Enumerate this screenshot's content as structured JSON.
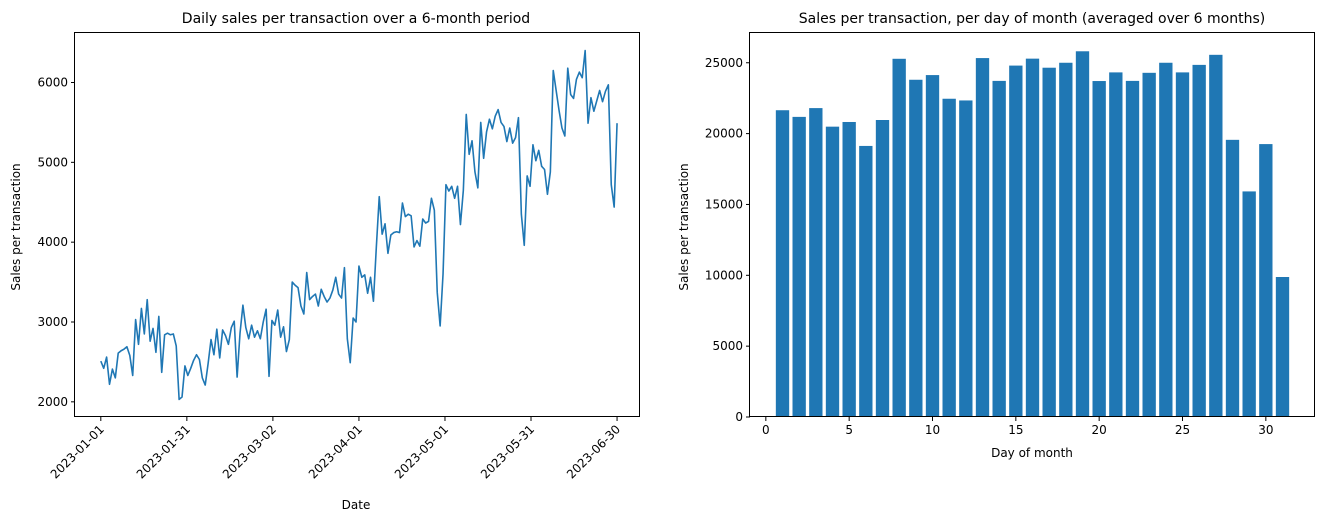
{
  "chart_data": [
    {
      "type": "line",
      "title": "Daily sales per transaction over a 6-month period",
      "xlabel": "Date",
      "ylabel": "Sales per transaction",
      "color": "#1f77b4",
      "xtick_labels": [
        "2023-01-01",
        "2023-01-31",
        "2023-03-02",
        "2023-04-01",
        "2023-05-01",
        "2023-05-31",
        "2023-06-30"
      ],
      "xlim": [
        "2022-12-23",
        "2023-07-08"
      ],
      "ylim": [
        1810,
        6620
      ],
      "yticks": [
        2000,
        3000,
        4000,
        5000,
        6000
      ],
      "grid": false,
      "x_start": "2023-01-01",
      "x_end": "2023-06-30",
      "y": [
        2510,
        2420,
        2560,
        2220,
        2410,
        2300,
        2610,
        2640,
        2660,
        2690,
        2580,
        2330,
        3030,
        2720,
        3170,
        2850,
        3280,
        2760,
        2920,
        2620,
        3070,
        2370,
        2840,
        2860,
        2840,
        2850,
        2700,
        2030,
        2060,
        2450,
        2330,
        2420,
        2520,
        2590,
        2530,
        2300,
        2210,
        2480,
        2780,
        2590,
        2910,
        2550,
        2900,
        2830,
        2720,
        2930,
        3010,
        2310,
        2860,
        3210,
        2930,
        2790,
        2960,
        2810,
        2890,
        2790,
        3000,
        3160,
        2320,
        3020,
        2960,
        3150,
        2810,
        2940,
        2630,
        2780,
        3500,
        3460,
        3430,
        3200,
        3100,
        3620,
        3280,
        3320,
        3350,
        3200,
        3410,
        3320,
        3250,
        3300,
        3400,
        3560,
        3350,
        3300,
        3680,
        2790,
        2490,
        3050,
        3000,
        3700,
        3560,
        3590,
        3360,
        3560,
        3260,
        3940,
        4570,
        4100,
        4230,
        3860,
        4090,
        4120,
        4130,
        4120,
        4490,
        4320,
        4350,
        4330,
        3940,
        4020,
        3950,
        4290,
        4240,
        4260,
        4550,
        4400,
        3370,
        2950,
        3600,
        4720,
        4640,
        4700,
        4550,
        4700,
        4220,
        4650,
        5600,
        5100,
        5270,
        4880,
        4680,
        5500,
        5050,
        5380,
        5540,
        5420,
        5580,
        5660,
        5500,
        5450,
        5260,
        5430,
        5240,
        5310,
        5560,
        4350,
        3960,
        4830,
        4700,
        5220,
        5020,
        5150,
        4950,
        4910,
        4600,
        4880,
        6150,
        5900,
        5650,
        5430,
        5330,
        6180,
        5850,
        5800,
        6040,
        6130,
        6060,
        6400,
        5490,
        5810,
        5640,
        5770,
        5900,
        5760,
        5890,
        5970,
        4720,
        4440,
        5490
      ]
    },
    {
      "type": "bar",
      "title": "Sales per transaction, per day of month (averaged over 6 months)",
      "xlabel": "Day of month",
      "ylabel": "Sales per transaction",
      "color": "#1f77b4",
      "categories": [
        1,
        2,
        3,
        4,
        5,
        6,
        7,
        8,
        9,
        10,
        11,
        12,
        13,
        14,
        15,
        16,
        17,
        18,
        19,
        20,
        21,
        22,
        23,
        24,
        25,
        26,
        27,
        28,
        29,
        30,
        31
      ],
      "values": [
        21650,
        21180,
        21800,
        20490,
        20820,
        19130,
        20960,
        25280,
        23800,
        24130,
        22460,
        22340,
        25330,
        23720,
        24800,
        25290,
        24650,
        25000,
        25810,
        23710,
        24320,
        23720,
        24290,
        25000,
        24320,
        24850,
        25560,
        19560,
        15920,
        19260,
        9880
      ],
      "xticks": [
        0,
        5,
        10,
        15,
        20,
        25,
        30
      ],
      "xlim": [
        -0.95,
        32.95
      ],
      "ylim": [
        0,
        27100
      ],
      "yticks": [
        0,
        5000,
        10000,
        15000,
        20000,
        25000
      ],
      "grid": false
    }
  ]
}
